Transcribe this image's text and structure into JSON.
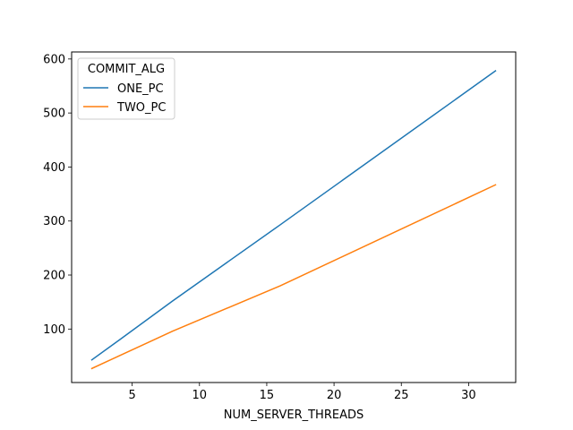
{
  "chart_data": {
    "type": "line",
    "xlabel": "NUM_SERVER_THREADS",
    "ylabel": "",
    "title": "",
    "x": [
      2,
      4,
      8,
      16,
      32
    ],
    "xlim": [
      0.5,
      33.5
    ],
    "ylim": [
      1,
      613
    ],
    "xticks": [
      5,
      10,
      15,
      20,
      25,
      30
    ],
    "yticks": [
      100,
      200,
      300,
      400,
      500,
      600
    ],
    "grid": false,
    "legend": {
      "title": "COMMIT_ALG",
      "placement": "top-left"
    },
    "series": [
      {
        "name": "ONE_PC",
        "color": "#1f77b4",
        "values": [
          43,
          79,
          152,
          293,
          578
        ]
      },
      {
        "name": "TWO_PC",
        "color": "#ff7f0e",
        "values": [
          27,
          50,
          96,
          180,
          367
        ]
      }
    ]
  }
}
